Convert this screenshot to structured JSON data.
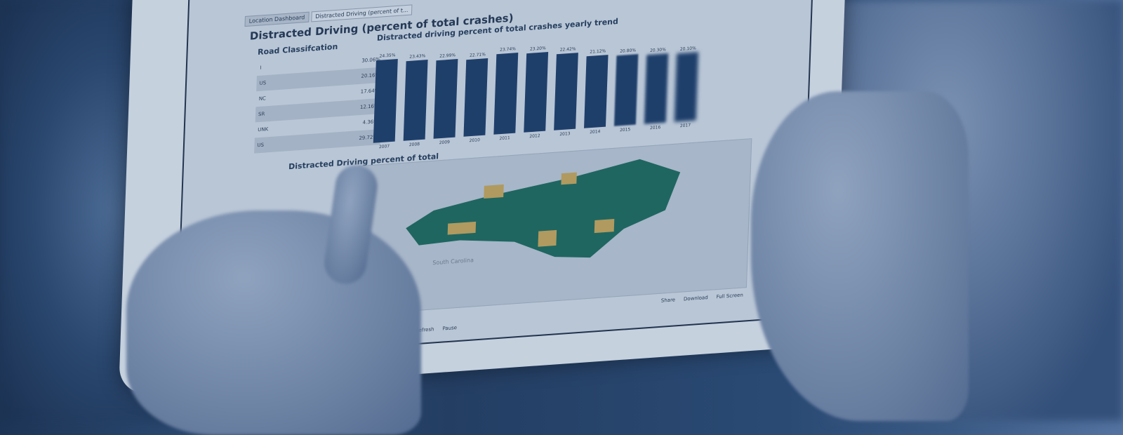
{
  "tabs": [
    {
      "label": "Location Dashboard"
    },
    {
      "label": "Distracted Driving (percent of t..."
    }
  ],
  "title": "Distracted Driving (percent of total crashes)",
  "road_classification": {
    "title": "Road Classifcation",
    "rows": [
      {
        "label": "I",
        "value": "30.06%"
      },
      {
        "label": "US",
        "value": "20.16%"
      },
      {
        "label": "NC",
        "value": "17.64%"
      },
      {
        "label": "SR",
        "value": "12.16%"
      },
      {
        "label": "UNK",
        "value": "4.36%"
      },
      {
        "label": "US",
        "value": "29.72%"
      }
    ]
  },
  "chart_data": {
    "type": "bar",
    "title": "Distracted driving percent of total crashes yearly trend",
    "categories": [
      "2007",
      "2008",
      "2009",
      "2010",
      "2011",
      "2012",
      "2013",
      "2014",
      "2015",
      "2016",
      "2017"
    ],
    "labels": [
      "24.35%",
      "23.43%",
      "22.99%",
      "22.71%",
      "23.74%",
      "23.20%",
      "22.42%",
      "21.12%",
      "20.80%",
      "20.30%",
      "20.10%"
    ],
    "values": [
      24.35,
      23.43,
      22.99,
      22.71,
      23.74,
      23.2,
      22.42,
      21.12,
      20.8,
      20.3,
      20.1
    ],
    "bar_color": "#1f3f6b"
  },
  "map": {
    "title": "Distracted Driving percent of total",
    "label": "South Carolina",
    "colors": {
      "main": "#1f6660",
      "highlight": "#b09a5f"
    }
  },
  "footer": {
    "share": "Share",
    "download": "Download",
    "fullscreen": "Full Screen",
    "refresh": "Refresh",
    "pause": "Pause"
  }
}
